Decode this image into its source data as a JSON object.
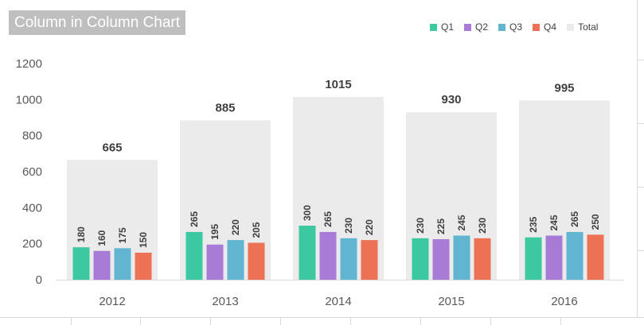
{
  "chart_data": {
    "type": "bar",
    "title": "Column in Column Chart",
    "categories": [
      "2012",
      "2013",
      "2014",
      "2015",
      "2016"
    ],
    "series": [
      {
        "name": "Q1",
        "color": "#3cc8a0",
        "values": [
          180,
          265,
          300,
          230,
          235
        ]
      },
      {
        "name": "Q2",
        "color": "#a77bd6",
        "values": [
          160,
          195,
          265,
          225,
          245
        ]
      },
      {
        "name": "Q3",
        "color": "#62b5d1",
        "values": [
          175,
          220,
          230,
          245,
          265
        ]
      },
      {
        "name": "Q4",
        "color": "#ec7155",
        "values": [
          150,
          205,
          220,
          230,
          250
        ]
      },
      {
        "name": "Total",
        "color": "#ebebeb",
        "values": [
          665,
          885,
          1015,
          930,
          995
        ]
      }
    ],
    "ylim": [
      0,
      1200
    ],
    "yticks": [
      0,
      200,
      400,
      600,
      800,
      1000,
      1200
    ],
    "grid": false,
    "legend_position": "top-right",
    "xlabel": "",
    "ylabel": ""
  }
}
